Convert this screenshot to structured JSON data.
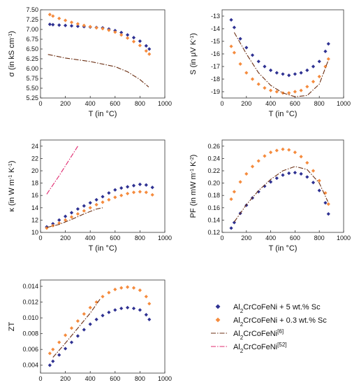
{
  "colors": {
    "sc5": "#2e3192",
    "sc03": "#f58b3d",
    "ref6": "#6b2e12",
    "ref52": "#e0286e",
    "axis": "#333333"
  },
  "legend": {
    "placement": "bottom-right",
    "entries": [
      {
        "id": "sc5",
        "base": "Al",
        "sub": "2",
        "rest": "CrCoFeNi + 5 wt.% Sc",
        "sup": "",
        "style": "diamond"
      },
      {
        "id": "sc03",
        "base": "Al",
        "sub": "2",
        "rest": "CrCoFeNi + 0.3 wt.% Sc",
        "sup": "",
        "style": "diamond"
      },
      {
        "id": "ref6",
        "base": "Al",
        "sub": "2",
        "rest": "CrCoFeNi",
        "sup": "[6]",
        "style": "dashdot"
      },
      {
        "id": "ref52",
        "base": "Al",
        "sub": "2",
        "rest": "CrCoFeNi",
        "sup": "[52]",
        "style": "dashdot"
      }
    ]
  },
  "chart_data": [
    {
      "type": "scatter",
      "id": "sigma",
      "xlabel": "T (in °C)",
      "ylabel": {
        "pre": "σ (in kS cm",
        "sup": "-1",
        "post": ")"
      },
      "xlim": [
        0,
        1000
      ],
      "ylim": [
        5.25,
        7.5
      ],
      "xticks": [
        0,
        200,
        400,
        600,
        800,
        1000
      ],
      "yticks": [
        5.25,
        5.5,
        5.75,
        6.0,
        6.25,
        6.5,
        6.75,
        7.0,
        7.25,
        7.5
      ],
      "ytick_labels": [
        "5.25",
        "5.50",
        "5.75",
        "6.00",
        "6.25",
        "6.50",
        "6.75",
        "7.00",
        "7.25",
        "7.50"
      ],
      "series": [
        {
          "key": "sc5",
          "style": "diamond",
          "x": [
            75,
            100,
            150,
            200,
            250,
            300,
            350,
            400,
            450,
            500,
            550,
            600,
            650,
            700,
            750,
            800,
            850,
            875
          ],
          "y": [
            7.13,
            7.12,
            7.11,
            7.1,
            7.09,
            7.08,
            7.07,
            7.06,
            7.05,
            7.04,
            7.01,
            6.97,
            6.92,
            6.86,
            6.79,
            6.7,
            6.58,
            6.5
          ]
        },
        {
          "key": "sc03",
          "style": "diamond",
          "x": [
            75,
            100,
            150,
            200,
            250,
            300,
            350,
            400,
            450,
            500,
            550,
            600,
            650,
            700,
            750,
            800,
            850,
            875
          ],
          "y": [
            7.38,
            7.34,
            7.28,
            7.23,
            7.18,
            7.14,
            7.1,
            7.07,
            7.04,
            7.02,
            6.98,
            6.93,
            6.86,
            6.78,
            6.69,
            6.59,
            6.45,
            6.37
          ]
        },
        {
          "key": "ref6",
          "style": "dashdot",
          "x": [
            60,
            200,
            400,
            600,
            700,
            800,
            870
          ],
          "y": [
            6.36,
            6.27,
            6.18,
            6.05,
            5.92,
            5.72,
            5.53
          ]
        }
      ]
    },
    {
      "type": "scatter",
      "id": "seebeck",
      "xlabel": "T (in °C)",
      "ylabel": {
        "pre": "S (in μV K",
        "sup": "-1",
        "post": ")"
      },
      "xlim": [
        0,
        1000
      ],
      "ylim": [
        -19.5,
        -12.5
      ],
      "xticks": [
        0,
        200,
        400,
        600,
        800,
        1000
      ],
      "yticks": [
        -19,
        -18,
        -17,
        -16,
        -15,
        -14,
        -13
      ],
      "ytick_labels": [
        "-19",
        "-18",
        "-17",
        "-16",
        "-15",
        "-14",
        "-13"
      ],
      "series": [
        {
          "key": "sc5",
          "style": "diamond",
          "x": [
            75,
            100,
            150,
            200,
            250,
            300,
            350,
            400,
            450,
            500,
            550,
            600,
            650,
            700,
            750,
            800,
            850,
            875
          ],
          "y": [
            -13.3,
            -13.9,
            -14.8,
            -15.5,
            -16.1,
            -16.6,
            -17.0,
            -17.3,
            -17.5,
            -17.6,
            -17.7,
            -17.6,
            -17.5,
            -17.3,
            -17.0,
            -16.6,
            -15.8,
            -15.2
          ]
        },
        {
          "key": "sc03",
          "style": "diamond",
          "x": [
            75,
            100,
            150,
            200,
            250,
            300,
            350,
            400,
            450,
            500,
            550,
            600,
            650,
            700,
            750,
            800,
            850,
            875
          ],
          "y": [
            -15.4,
            -15.9,
            -16.8,
            -17.5,
            -18.0,
            -18.4,
            -18.7,
            -18.9,
            -19.0,
            -19.1,
            -19.1,
            -19.0,
            -18.9,
            -18.6,
            -18.2,
            -17.8,
            -17.0,
            -16.4
          ]
        },
        {
          "key": "ref6",
          "style": "dashdot",
          "x": [
            100,
            200,
            300,
            400,
            500,
            600,
            700,
            800,
            870
          ],
          "y": [
            -14.3,
            -16.0,
            -17.5,
            -18.5,
            -19.1,
            -19.4,
            -19.3,
            -18.4,
            -16.6
          ]
        }
      ]
    },
    {
      "type": "scatter",
      "id": "kappa",
      "xlabel": "T (in °C)",
      "ylabel": {
        "pre": "κ (in W m",
        "sup": "-1",
        "mid": " K",
        "sup2": "-1",
        "post": ")"
      },
      "xlim": [
        0,
        1000
      ],
      "ylim": [
        10,
        25
      ],
      "xticks": [
        0,
        200,
        400,
        600,
        800,
        1000
      ],
      "yticks": [
        10,
        12,
        14,
        16,
        18,
        20,
        22,
        24
      ],
      "ytick_labels": [
        "10",
        "12",
        "14",
        "16",
        "18",
        "20",
        "22",
        "24"
      ],
      "series": [
        {
          "key": "sc5",
          "style": "diamond",
          "x": [
            50,
            100,
            150,
            200,
            250,
            300,
            350,
            400,
            450,
            500,
            550,
            600,
            650,
            700,
            750,
            800,
            850,
            900
          ],
          "y": [
            10.9,
            11.4,
            12.0,
            12.6,
            13.2,
            13.8,
            14.3,
            14.8,
            15.3,
            15.8,
            16.4,
            16.9,
            17.2,
            17.4,
            17.6,
            17.8,
            17.7,
            17.3
          ]
        },
        {
          "key": "sc03",
          "style": "diamond",
          "x": [
            50,
            100,
            150,
            200,
            250,
            300,
            350,
            400,
            450,
            500,
            550,
            600,
            650,
            700,
            750,
            800,
            850,
            900
          ],
          "y": [
            10.7,
            11.1,
            11.5,
            12.0,
            12.5,
            13.0,
            13.5,
            14.0,
            14.5,
            14.9,
            15.3,
            15.7,
            16.0,
            16.3,
            16.5,
            16.6,
            16.5,
            16.1
          ]
        },
        {
          "key": "ref6",
          "style": "dashdot",
          "x": [
            50,
            150,
            250,
            350,
            450,
            500
          ],
          "y": [
            10.8,
            11.3,
            12.1,
            13.0,
            13.8,
            14.0
          ]
        },
        {
          "key": "ref52",
          "style": "dashdot",
          "x": [
            50,
            100,
            150,
            200,
            250,
            300
          ],
          "y": [
            16.2,
            17.7,
            19.2,
            20.8,
            22.4,
            24.0
          ]
        }
      ]
    },
    {
      "type": "scatter",
      "id": "pf",
      "xlabel": "T (in °C)",
      "ylabel": {
        "pre": "PF (in mW m",
        "sup": "-1",
        "mid": " K",
        "sup2": "-2",
        "post": ")"
      },
      "xlim": [
        0,
        1000
      ],
      "ylim": [
        0.12,
        0.27
      ],
      "xticks": [
        0,
        200,
        400,
        600,
        800,
        1000
      ],
      "yticks": [
        0.12,
        0.14,
        0.16,
        0.18,
        0.2,
        0.22,
        0.24,
        0.26
      ],
      "ytick_labels": [
        "0.12",
        "0.14",
        "0.16",
        "0.18",
        "0.20",
        "0.22",
        "0.24",
        "0.26"
      ],
      "series": [
        {
          "key": "sc5",
          "style": "diamond",
          "x": [
            75,
            100,
            150,
            200,
            250,
            300,
            350,
            400,
            450,
            500,
            550,
            600,
            650,
            700,
            750,
            800,
            850,
            875
          ],
          "y": [
            0.127,
            0.136,
            0.151,
            0.164,
            0.176,
            0.186,
            0.195,
            0.202,
            0.208,
            0.213,
            0.216,
            0.217,
            0.215,
            0.21,
            0.201,
            0.188,
            0.168,
            0.15
          ]
        },
        {
          "key": "sc03",
          "style": "diamond",
          "x": [
            75,
            100,
            150,
            200,
            250,
            300,
            350,
            400,
            450,
            500,
            550,
            600,
            650,
            700,
            750,
            800,
            850,
            875
          ],
          "y": [
            0.174,
            0.186,
            0.202,
            0.215,
            0.227,
            0.236,
            0.244,
            0.25,
            0.253,
            0.255,
            0.254,
            0.25,
            0.243,
            0.233,
            0.22,
            0.204,
            0.184,
            0.166
          ]
        },
        {
          "key": "ref6",
          "style": "dashdot",
          "x": [
            100,
            200,
            300,
            400,
            500,
            600,
            700,
            800,
            870
          ],
          "y": [
            0.137,
            0.165,
            0.188,
            0.206,
            0.22,
            0.227,
            0.222,
            0.2,
            0.17
          ]
        }
      ]
    },
    {
      "type": "scatter",
      "id": "zt",
      "xlabel": "T (in °C)",
      "ylabel": {
        "pre": "ZT",
        "sup": "",
        "post": ""
      },
      "xlim": [
        0,
        1000
      ],
      "ylim": [
        0.003,
        0.0148
      ],
      "xticks": [
        0,
        200,
        400,
        600,
        800,
        1000
      ],
      "yticks": [
        0.004,
        0.006,
        0.008,
        0.01,
        0.012,
        0.014
      ],
      "ytick_labels": [
        "0.004",
        "0.006",
        "0.008",
        "0.010",
        "0.012",
        "0.014"
      ],
      "series": [
        {
          "key": "sc5",
          "style": "diamond",
          "x": [
            75,
            100,
            150,
            200,
            250,
            300,
            350,
            400,
            450,
            500,
            550,
            600,
            650,
            700,
            750,
            800,
            850,
            875
          ],
          "y": [
            0.004,
            0.0045,
            0.0053,
            0.0061,
            0.0069,
            0.0077,
            0.0085,
            0.0092,
            0.0098,
            0.0103,
            0.0107,
            0.011,
            0.0112,
            0.0113,
            0.0112,
            0.011,
            0.0104,
            0.0098
          ]
        },
        {
          "key": "sc03",
          "style": "diamond",
          "x": [
            75,
            100,
            150,
            200,
            250,
            300,
            350,
            400,
            450,
            500,
            550,
            600,
            650,
            700,
            750,
            800,
            850,
            875
          ],
          "y": [
            0.0055,
            0.006,
            0.0069,
            0.0078,
            0.0087,
            0.0096,
            0.0105,
            0.0113,
            0.012,
            0.0127,
            0.0132,
            0.0136,
            0.0138,
            0.0139,
            0.0138,
            0.0135,
            0.0127,
            0.0118
          ]
        },
        {
          "key": "ref6",
          "style": "dashdot",
          "x": [
            100,
            200,
            300,
            400,
            480
          ],
          "y": [
            0.005,
            0.0068,
            0.0087,
            0.0106,
            0.0124
          ]
        }
      ]
    }
  ]
}
